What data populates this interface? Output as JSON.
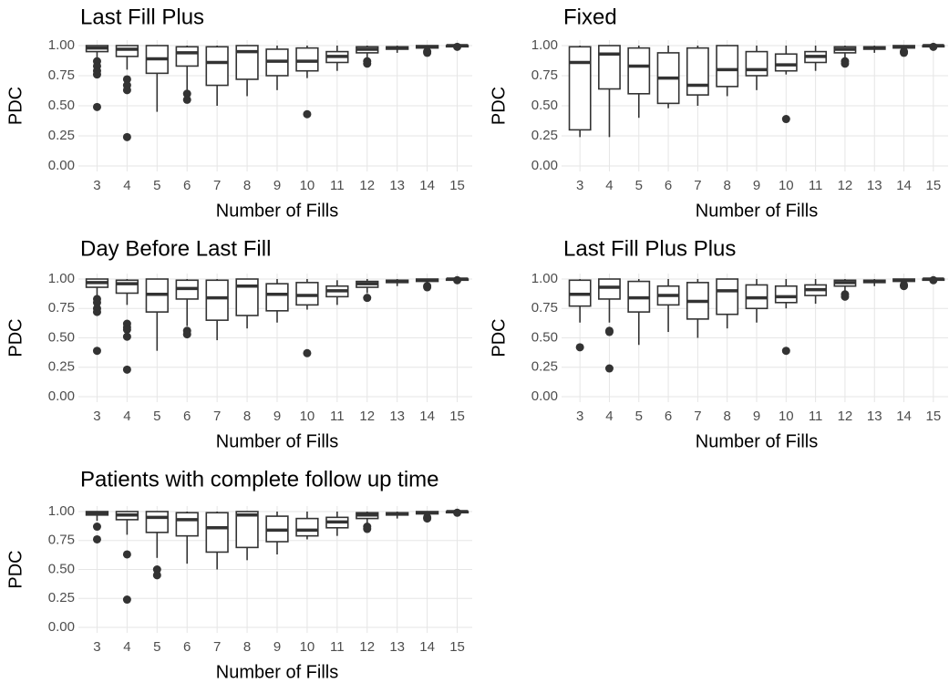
{
  "chart_data": [
    {
      "type": "box",
      "title": "Last Fill Plus",
      "x_label": "Number of Fills",
      "y_label": "PDC",
      "categories": [
        "3",
        "4",
        "5",
        "6",
        "7",
        "8",
        "9",
        "10",
        "11",
        "12",
        "13",
        "14",
        "15"
      ],
      "ylim": [
        0,
        1
      ],
      "yticks": [
        {
          "value": 0,
          "label": "0.00"
        },
        {
          "value": 0.25,
          "label": "0.25"
        },
        {
          "value": 0.5,
          "label": "0.50"
        },
        {
          "value": 0.75,
          "label": "0.75"
        },
        {
          "value": 1,
          "label": "1.00"
        }
      ],
      "grid": true,
      "color": "#333333",
      "boxes": [
        {
          "low": 0.9,
          "q1": 0.95,
          "median": 0.98,
          "q3": 1.0,
          "high": 1.0,
          "outliers": [
            0.87,
            0.83,
            0.79,
            0.76,
            0.49
          ]
        },
        {
          "low": 0.8,
          "q1": 0.91,
          "median": 0.97,
          "q3": 1.0,
          "high": 1.0,
          "outliers": [
            0.72,
            0.67,
            0.63,
            0.24
          ]
        },
        {
          "low": 0.45,
          "q1": 0.77,
          "median": 0.89,
          "q3": 1.0,
          "high": 1.0,
          "outliers": []
        },
        {
          "low": 0.62,
          "q1": 0.83,
          "median": 0.94,
          "q3": 0.99,
          "high": 1.0,
          "outliers": [
            0.6,
            0.55
          ]
        },
        {
          "low": 0.5,
          "q1": 0.67,
          "median": 0.86,
          "q3": 0.99,
          "high": 1.0,
          "outliers": []
        },
        {
          "low": 0.58,
          "q1": 0.72,
          "median": 0.95,
          "q3": 1.0,
          "high": 1.0,
          "outliers": []
        },
        {
          "low": 0.63,
          "q1": 0.75,
          "median": 0.87,
          "q3": 0.97,
          "high": 1.0,
          "outliers": []
        },
        {
          "low": 0.73,
          "q1": 0.79,
          "median": 0.87,
          "q3": 0.98,
          "high": 1.0,
          "outliers": [
            0.43
          ]
        },
        {
          "low": 0.79,
          "q1": 0.86,
          "median": 0.91,
          "q3": 0.95,
          "high": 1.0,
          "outliers": []
        },
        {
          "low": 0.9,
          "q1": 0.94,
          "median": 0.97,
          "q3": 0.99,
          "high": 1.0,
          "outliers": [
            0.87,
            0.85
          ]
        },
        {
          "low": 0.94,
          "q1": 0.97,
          "median": 0.98,
          "q3": 0.99,
          "high": 1.0,
          "outliers": []
        },
        {
          "low": 0.96,
          "q1": 0.98,
          "median": 0.99,
          "q3": 1.0,
          "high": 1.0,
          "outliers": [
            0.95,
            0.94
          ]
        },
        {
          "low": 0.98,
          "q1": 0.99,
          "median": 1.0,
          "q3": 1.0,
          "high": 1.0,
          "outliers": [
            0.99
          ]
        }
      ]
    },
    {
      "type": "box",
      "title": "Fixed",
      "x_label": "Number of Fills",
      "y_label": "PDC",
      "categories": [
        "3",
        "4",
        "5",
        "6",
        "7",
        "8",
        "9",
        "10",
        "11",
        "12",
        "13",
        "14",
        "15"
      ],
      "ylim": [
        0,
        1
      ],
      "yticks": [
        {
          "value": 0,
          "label": "0.00"
        },
        {
          "value": 0.25,
          "label": "0.25"
        },
        {
          "value": 0.5,
          "label": "0.50"
        },
        {
          "value": 0.75,
          "label": "0.75"
        },
        {
          "value": 1,
          "label": "1.00"
        }
      ],
      "grid": true,
      "color": "#333333",
      "boxes": [
        {
          "low": 0.24,
          "q1": 0.3,
          "median": 0.86,
          "q3": 0.99,
          "high": 1.0,
          "outliers": []
        },
        {
          "low": 0.24,
          "q1": 0.64,
          "median": 0.93,
          "q3": 1.0,
          "high": 1.0,
          "outliers": []
        },
        {
          "low": 0.4,
          "q1": 0.6,
          "median": 0.83,
          "q3": 0.98,
          "high": 1.0,
          "outliers": []
        },
        {
          "low": 0.48,
          "q1": 0.52,
          "median": 0.73,
          "q3": 0.94,
          "high": 1.0,
          "outliers": []
        },
        {
          "low": 0.5,
          "q1": 0.59,
          "median": 0.67,
          "q3": 0.98,
          "high": 1.0,
          "outliers": []
        },
        {
          "low": 0.58,
          "q1": 0.66,
          "median": 0.8,
          "q3": 1.0,
          "high": 1.0,
          "outliers": []
        },
        {
          "low": 0.63,
          "q1": 0.75,
          "median": 0.8,
          "q3": 0.95,
          "high": 1.0,
          "outliers": []
        },
        {
          "low": 0.76,
          "q1": 0.79,
          "median": 0.84,
          "q3": 0.93,
          "high": 1.0,
          "outliers": [
            0.39
          ]
        },
        {
          "low": 0.79,
          "q1": 0.86,
          "median": 0.91,
          "q3": 0.95,
          "high": 1.0,
          "outliers": []
        },
        {
          "low": 0.9,
          "q1": 0.94,
          "median": 0.97,
          "q3": 0.99,
          "high": 1.0,
          "outliers": [
            0.87,
            0.85
          ]
        },
        {
          "low": 0.94,
          "q1": 0.97,
          "median": 0.98,
          "q3": 0.99,
          "high": 1.0,
          "outliers": []
        },
        {
          "low": 0.96,
          "q1": 0.98,
          "median": 0.99,
          "q3": 1.0,
          "high": 1.0,
          "outliers": [
            0.95,
            0.94
          ]
        },
        {
          "low": 0.98,
          "q1": 0.99,
          "median": 1.0,
          "q3": 1.0,
          "high": 1.0,
          "outliers": [
            0.99
          ]
        }
      ]
    },
    {
      "type": "box",
      "title": "Day Before Last Fill",
      "x_label": "Number of Fills",
      "y_label": "PDC",
      "categories": [
        "3",
        "4",
        "5",
        "6",
        "7",
        "8",
        "9",
        "10",
        "11",
        "12",
        "13",
        "14",
        "15"
      ],
      "ylim": [
        0,
        1
      ],
      "yticks": [
        {
          "value": 0,
          "label": "0.00"
        },
        {
          "value": 0.25,
          "label": "0.25"
        },
        {
          "value": 0.5,
          "label": "0.50"
        },
        {
          "value": 0.75,
          "label": "0.75"
        },
        {
          "value": 1,
          "label": "1.00"
        }
      ],
      "grid": true,
      "color": "#333333",
      "boxes": [
        {
          "low": 0.86,
          "q1": 0.93,
          "median": 0.97,
          "q3": 1.0,
          "high": 1.0,
          "outliers": [
            0.83,
            0.8,
            0.75,
            0.72,
            0.39
          ]
        },
        {
          "low": 0.78,
          "q1": 0.88,
          "median": 0.96,
          "q3": 0.99,
          "high": 1.0,
          "outliers": [
            0.62,
            0.59,
            0.57,
            0.51,
            0.23
          ]
        },
        {
          "low": 0.39,
          "q1": 0.72,
          "median": 0.87,
          "q3": 1.0,
          "high": 1.0,
          "outliers": []
        },
        {
          "low": 0.6,
          "q1": 0.83,
          "median": 0.92,
          "q3": 0.99,
          "high": 1.0,
          "outliers": [
            0.56,
            0.53
          ]
        },
        {
          "low": 0.48,
          "q1": 0.65,
          "median": 0.84,
          "q3": 0.99,
          "high": 1.0,
          "outliers": []
        },
        {
          "low": 0.58,
          "q1": 0.69,
          "median": 0.94,
          "q3": 1.0,
          "high": 1.0,
          "outliers": []
        },
        {
          "low": 0.63,
          "q1": 0.73,
          "median": 0.87,
          "q3": 0.96,
          "high": 1.0,
          "outliers": []
        },
        {
          "low": 0.74,
          "q1": 0.78,
          "median": 0.86,
          "q3": 0.97,
          "high": 1.0,
          "outliers": [
            0.37
          ]
        },
        {
          "low": 0.78,
          "q1": 0.85,
          "median": 0.9,
          "q3": 0.94,
          "high": 0.99,
          "outliers": []
        },
        {
          "low": 0.88,
          "q1": 0.93,
          "median": 0.96,
          "q3": 0.98,
          "high": 1.0,
          "outliers": [
            0.84
          ]
        },
        {
          "low": 0.94,
          "q1": 0.97,
          "median": 0.98,
          "q3": 0.99,
          "high": 1.0,
          "outliers": []
        },
        {
          "low": 0.96,
          "q1": 0.98,
          "median": 0.99,
          "q3": 1.0,
          "high": 1.0,
          "outliers": [
            0.94,
            0.93
          ]
        },
        {
          "low": 0.98,
          "q1": 0.99,
          "median": 1.0,
          "q3": 1.0,
          "high": 1.0,
          "outliers": [
            0.99
          ]
        }
      ]
    },
    {
      "type": "box",
      "title": "Last Fill Plus Plus",
      "x_label": "Number of Fills",
      "y_label": "PDC",
      "categories": [
        "3",
        "4",
        "5",
        "6",
        "7",
        "8",
        "9",
        "10",
        "11",
        "12",
        "13",
        "14",
        "15"
      ],
      "ylim": [
        0,
        1
      ],
      "yticks": [
        {
          "value": 0,
          "label": "0.00"
        },
        {
          "value": 0.25,
          "label": "0.25"
        },
        {
          "value": 0.5,
          "label": "0.50"
        },
        {
          "value": 0.75,
          "label": "0.75"
        },
        {
          "value": 1,
          "label": "1.00"
        }
      ],
      "grid": true,
      "color": "#333333",
      "boxes": [
        {
          "low": 0.63,
          "q1": 0.77,
          "median": 0.87,
          "q3": 0.99,
          "high": 1.0,
          "outliers": [
            0.42
          ]
        },
        {
          "low": 0.63,
          "q1": 0.83,
          "median": 0.93,
          "q3": 1.0,
          "high": 1.0,
          "outliers": [
            0.56,
            0.55,
            0.24
          ]
        },
        {
          "low": 0.44,
          "q1": 0.72,
          "median": 0.84,
          "q3": 0.98,
          "high": 1.0,
          "outliers": []
        },
        {
          "low": 0.55,
          "q1": 0.78,
          "median": 0.86,
          "q3": 0.94,
          "high": 1.0,
          "outliers": []
        },
        {
          "low": 0.5,
          "q1": 0.66,
          "median": 0.81,
          "q3": 0.97,
          "high": 1.0,
          "outliers": []
        },
        {
          "low": 0.58,
          "q1": 0.7,
          "median": 0.9,
          "q3": 1.0,
          "high": 1.0,
          "outliers": []
        },
        {
          "low": 0.63,
          "q1": 0.75,
          "median": 0.84,
          "q3": 0.95,
          "high": 1.0,
          "outliers": []
        },
        {
          "low": 0.75,
          "q1": 0.8,
          "median": 0.85,
          "q3": 0.94,
          "high": 1.0,
          "outliers": [
            0.39
          ]
        },
        {
          "low": 0.79,
          "q1": 0.86,
          "median": 0.91,
          "q3": 0.95,
          "high": 1.0,
          "outliers": []
        },
        {
          "low": 0.9,
          "q1": 0.94,
          "median": 0.97,
          "q3": 0.99,
          "high": 1.0,
          "outliers": [
            0.87,
            0.85
          ]
        },
        {
          "low": 0.94,
          "q1": 0.97,
          "median": 0.98,
          "q3": 0.99,
          "high": 1.0,
          "outliers": []
        },
        {
          "low": 0.96,
          "q1": 0.98,
          "median": 0.99,
          "q3": 1.0,
          "high": 1.0,
          "outliers": [
            0.95,
            0.94
          ]
        },
        {
          "low": 0.98,
          "q1": 0.99,
          "median": 1.0,
          "q3": 1.0,
          "high": 1.0,
          "outliers": [
            0.99
          ]
        }
      ]
    },
    {
      "type": "box",
      "title": "Patients with complete follow up time",
      "x_label": "Number of Fills",
      "y_label": "PDC",
      "categories": [
        "3",
        "4",
        "5",
        "6",
        "7",
        "8",
        "9",
        "10",
        "11",
        "12",
        "13",
        "14",
        "15"
      ],
      "ylim": [
        0,
        1
      ],
      "yticks": [
        {
          "value": 0,
          "label": "0.00"
        },
        {
          "value": 0.25,
          "label": "0.25"
        },
        {
          "value": 0.5,
          "label": "0.50"
        },
        {
          "value": 0.75,
          "label": "0.75"
        },
        {
          "value": 1,
          "label": "1.00"
        }
      ],
      "grid": true,
      "color": "#333333",
      "boxes": [
        {
          "low": 0.92,
          "q1": 0.97,
          "median": 0.99,
          "q3": 1.0,
          "high": 1.0,
          "outliers": [
            0.87,
            0.76
          ]
        },
        {
          "low": 0.8,
          "q1": 0.93,
          "median": 0.97,
          "q3": 1.0,
          "high": 1.0,
          "outliers": [
            0.63,
            0.24
          ]
        },
        {
          "low": 0.6,
          "q1": 0.82,
          "median": 0.95,
          "q3": 1.0,
          "high": 1.0,
          "outliers": [
            0.5,
            0.45
          ]
        },
        {
          "low": 0.55,
          "q1": 0.79,
          "median": 0.93,
          "q3": 0.99,
          "high": 1.0,
          "outliers": []
        },
        {
          "low": 0.5,
          "q1": 0.65,
          "median": 0.86,
          "q3": 0.99,
          "high": 1.0,
          "outliers": []
        },
        {
          "low": 0.58,
          "q1": 0.69,
          "median": 0.97,
          "q3": 1.0,
          "high": 1.0,
          "outliers": []
        },
        {
          "low": 0.63,
          "q1": 0.74,
          "median": 0.84,
          "q3": 0.96,
          "high": 1.0,
          "outliers": []
        },
        {
          "low": 0.76,
          "q1": 0.79,
          "median": 0.84,
          "q3": 0.94,
          "high": 1.0,
          "outliers": []
        },
        {
          "low": 0.79,
          "q1": 0.86,
          "median": 0.91,
          "q3": 0.95,
          "high": 1.0,
          "outliers": []
        },
        {
          "low": 0.9,
          "q1": 0.94,
          "median": 0.97,
          "q3": 0.99,
          "high": 1.0,
          "outliers": [
            0.87,
            0.85
          ]
        },
        {
          "low": 0.94,
          "q1": 0.97,
          "median": 0.98,
          "q3": 0.99,
          "high": 1.0,
          "outliers": []
        },
        {
          "low": 0.96,
          "q1": 0.98,
          "median": 0.99,
          "q3": 1.0,
          "high": 1.0,
          "outliers": [
            0.95,
            0.94
          ]
        },
        {
          "low": 0.98,
          "q1": 0.99,
          "median": 1.0,
          "q3": 1.0,
          "high": 1.0,
          "outliers": [
            0.99
          ]
        }
      ]
    }
  ]
}
